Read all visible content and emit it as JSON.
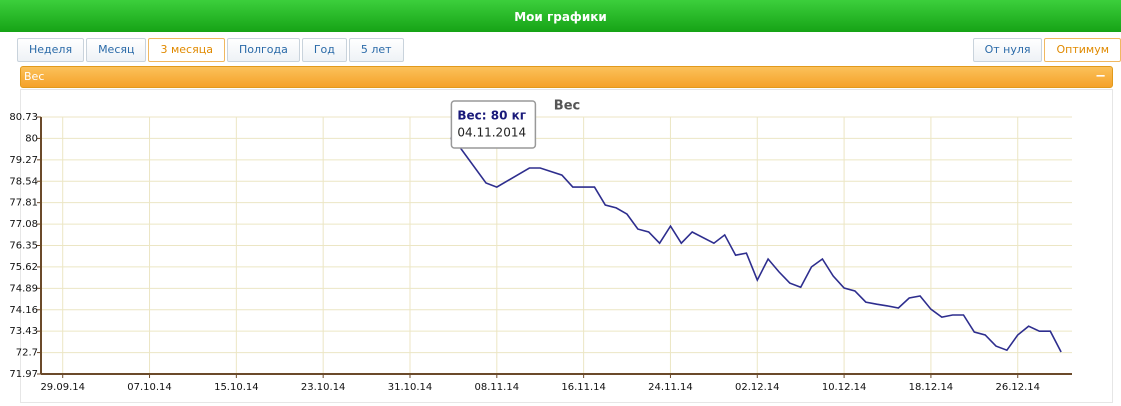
{
  "header": {
    "title": "Мои графики"
  },
  "tabs": {
    "period": [
      "Неделя",
      "Месяц",
      "3 месяца",
      "Полгода",
      "Год",
      "5 лет"
    ],
    "scale": [
      "От нуля",
      "Оптимум"
    ]
  },
  "panel": {
    "title": "Вес"
  },
  "chart_data": {
    "type": "line",
    "title": "Вес",
    "tooltip": {
      "title": "Вес: 80 кг",
      "date": "04.11.2014"
    },
    "x": [
      "2014-11-04",
      "2014-11-07",
      "2014-11-08",
      "2014-11-11",
      "2014-11-12",
      "2014-11-14",
      "2014-11-15",
      "2014-11-17",
      "2014-11-18",
      "2014-11-19",
      "2014-11-20",
      "2014-11-21",
      "2014-11-22",
      "2014-11-23",
      "2014-11-24",
      "2014-11-25",
      "2014-11-26",
      "2014-11-28",
      "2014-11-29",
      "2014-11-30",
      "2014-12-01",
      "2014-12-02",
      "2014-12-03",
      "2014-12-04",
      "2014-12-05",
      "2014-12-06",
      "2014-12-07",
      "2014-12-08",
      "2014-12-09",
      "2014-12-10",
      "2014-12-11",
      "2014-12-12",
      "2014-12-13",
      "2014-12-14",
      "2014-12-15",
      "2014-12-16",
      "2014-12-17",
      "2014-12-18",
      "2014-12-19",
      "2014-12-20",
      "2014-12-21",
      "2014-12-22",
      "2014-12-23",
      "2014-12-24",
      "2014-12-25",
      "2014-12-26",
      "2014-12-27",
      "2014-12-28",
      "2014-12-29",
      "2014-12-30"
    ],
    "series": [
      {
        "name": "Вес",
        "color": "#2e2e8e",
        "values": [
          80,
          78.48,
          78.34,
          78.99,
          78.99,
          78.75,
          78.34,
          78.34,
          77.73,
          77.63,
          77.42,
          76.91,
          76.81,
          76.43,
          77.01,
          76.43,
          76.81,
          76.43,
          76.71,
          76.02,
          76.09,
          75.17,
          75.89,
          75.45,
          75.07,
          74.93,
          75.62,
          75.89,
          75.31,
          74.9,
          74.8,
          74.42,
          74.35,
          74.29,
          74.22,
          74.56,
          74.63,
          74.18,
          73.91,
          73.98,
          73.98,
          73.4,
          73.3,
          72.92,
          72.78,
          73.3,
          73.6,
          73.43,
          73.43,
          72.72
        ]
      }
    ],
    "xlim": [
      "2014-09-27",
      "2014-12-31"
    ],
    "xticks": [
      {
        "value": "2014-09-29",
        "label": "29.09.14"
      },
      {
        "value": "2014-10-07",
        "label": "07.10.14"
      },
      {
        "value": "2014-10-15",
        "label": "15.10.14"
      },
      {
        "value": "2014-10-23",
        "label": "23.10.14"
      },
      {
        "value": "2014-10-31",
        "label": "31.10.14"
      },
      {
        "value": "2014-11-08",
        "label": "08.11.14"
      },
      {
        "value": "2014-11-16",
        "label": "16.11.14"
      },
      {
        "value": "2014-11-24",
        "label": "24.11.14"
      },
      {
        "value": "2014-12-02",
        "label": "02.12.14"
      },
      {
        "value": "2014-12-10",
        "label": "10.12.14"
      },
      {
        "value": "2014-12-18",
        "label": "18.12.14"
      },
      {
        "value": "2014-12-26",
        "label": "26.12.14"
      }
    ],
    "ylim": [
      71.97,
      80.73
    ],
    "yticks": [
      71.97,
      72.7,
      73.43,
      74.16,
      74.89,
      75.62,
      76.35,
      77.08,
      77.81,
      78.54,
      79.27,
      80,
      80.73
    ],
    "grid": true
  }
}
